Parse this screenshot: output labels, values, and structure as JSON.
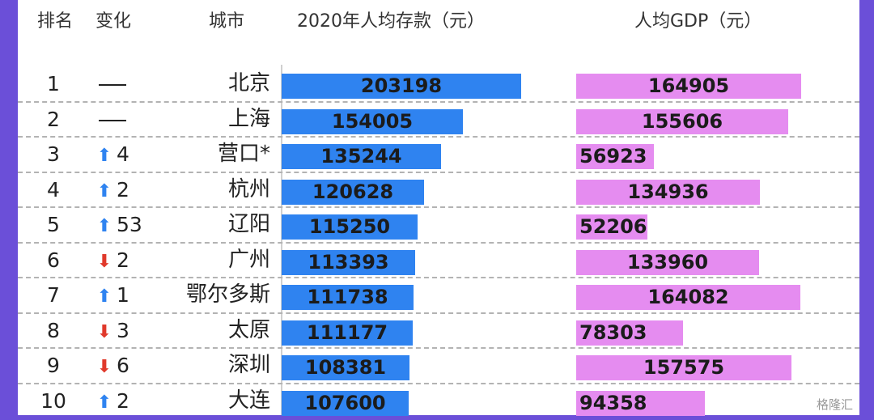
{
  "headers": {
    "rank": "排名",
    "change": "变化",
    "city": "城市",
    "deposit": "2020年人均存款（元）",
    "gdp": "人均GDP（元）"
  },
  "colors": {
    "deposit_bar": "#2f83f0",
    "gdp_bar": "#e58cf0",
    "up_arrow": "#2f83f0",
    "down_arrow": "#e0392b"
  },
  "watermark": "格隆汇",
  "chart_data": {
    "type": "bar",
    "orientation": "horizontal",
    "categories": [
      "北京",
      "上海",
      "营口*",
      "杭州",
      "辽阳",
      "广州",
      "鄂尔多斯",
      "太原",
      "深圳",
      "大连"
    ],
    "series": [
      {
        "name": "2020年人均存款（元）",
        "values": [
          203198,
          154005,
          135244,
          120628,
          115250,
          113393,
          111738,
          111177,
          108381,
          107600
        ]
      },
      {
        "name": "人均GDP（元）",
        "values": [
          164905,
          155606,
          56923,
          134936,
          52206,
          133960,
          164082,
          78303,
          157575,
          94358
        ]
      }
    ],
    "rows": [
      {
        "rank": "1",
        "dir": "none",
        "change": ""
      },
      {
        "rank": "2",
        "dir": "none",
        "change": ""
      },
      {
        "rank": "3",
        "dir": "up",
        "change": "4"
      },
      {
        "rank": "4",
        "dir": "up",
        "change": "2"
      },
      {
        "rank": "5",
        "dir": "up",
        "change": "53"
      },
      {
        "rank": "6",
        "dir": "down",
        "change": "2"
      },
      {
        "rank": "7",
        "dir": "up",
        "change": "1"
      },
      {
        "rank": "8",
        "dir": "down",
        "change": "3"
      },
      {
        "rank": "9",
        "dir": "down",
        "change": "6"
      },
      {
        "rank": "10",
        "dir": "up",
        "change": "2"
      }
    ],
    "title": "",
    "xlabel": "",
    "ylabel": "",
    "grid": false,
    "legend": "none"
  }
}
